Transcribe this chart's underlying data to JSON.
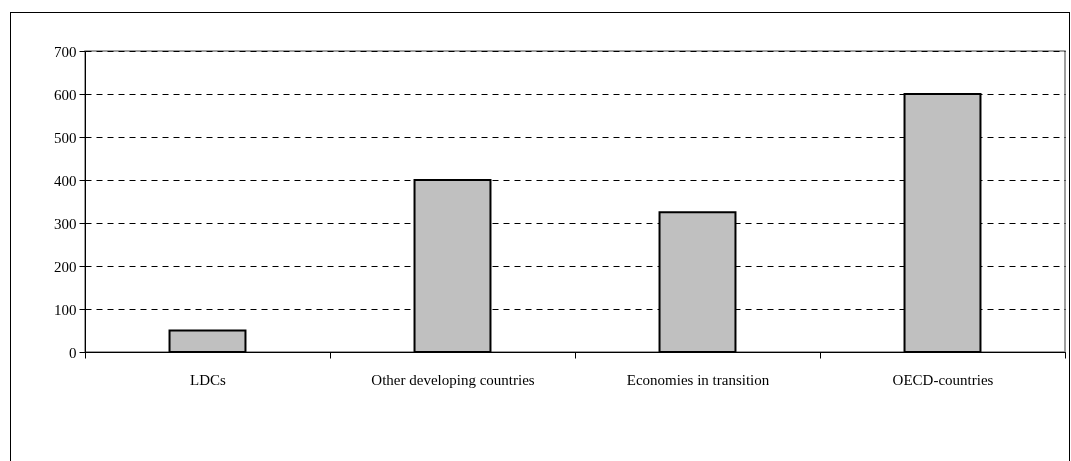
{
  "chart_data": {
    "type": "bar",
    "categories": [
      "LDCs",
      "Other developing countries",
      "Economies in transition",
      "OECD-countries"
    ],
    "values": [
      50,
      400,
      325,
      600
    ],
    "color": "#c0c0c0",
    "ylim": [
      0,
      700
    ],
    "yticks": [
      0,
      100,
      200,
      300,
      400,
      500,
      600,
      700
    ],
    "grid": "y"
  }
}
